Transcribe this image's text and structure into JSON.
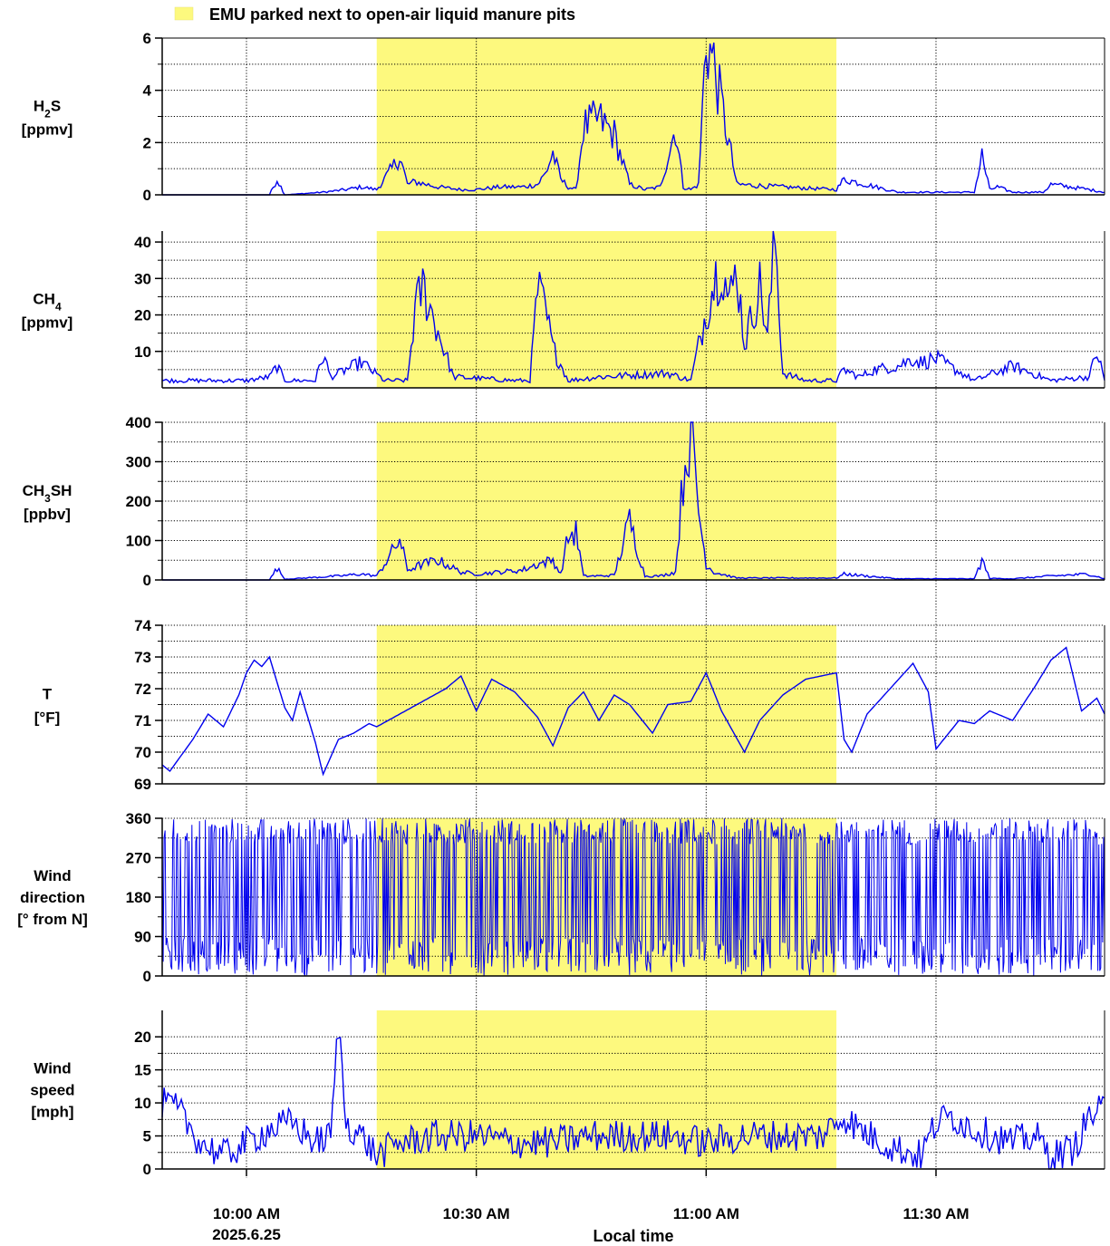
{
  "legend": {
    "label": "EMU parked next to open-air liquid manure pits",
    "color": "#fdf97e"
  },
  "chart_data": {
    "type": "line",
    "xlabel": "Local time",
    "date_label": "2025.6.25",
    "x_range": [
      "09:49",
      "11:52"
    ],
    "x_ticks": [
      {
        "time": "10:00",
        "label": "10:00 AM"
      },
      {
        "time": "10:30",
        "label": "10:30 AM"
      },
      {
        "time": "11:00",
        "label": "11:00 AM"
      },
      {
        "time": "11:30",
        "label": "11:30 AM"
      }
    ],
    "highlight": {
      "start": "10:17",
      "end": "11:17",
      "label": "EMU parked next to open-air liquid manure pits"
    },
    "series_color": "#0000ee",
    "grid": true,
    "panels": [
      {
        "id": "h2s",
        "label_parts": [
          {
            "t": "H"
          },
          {
            "t": "2",
            "sub": true
          },
          {
            "t": "S"
          }
        ],
        "unit": "[ppmv]",
        "ylim": [
          0,
          6
        ],
        "yticks": [
          0,
          2,
          4,
          6
        ],
        "ygrid": [
          1,
          3,
          5
        ],
        "x": [
          "09:49",
          "10:03",
          "10:04",
          "10:05",
          "10:10",
          "10:13",
          "10:15",
          "10:17",
          "10:19",
          "10:20",
          "10:21",
          "10:22",
          "10:25",
          "10:28",
          "10:30",
          "10:33",
          "10:36",
          "10:38",
          "10:39",
          "10:40",
          "10:41",
          "10:42",
          "10:43",
          "10:44",
          "10:46",
          "10:48",
          "10:50",
          "10:52",
          "10:54",
          "10:56",
          "10:57",
          "10:58",
          "10:59",
          "11:00",
          "11:01",
          "11:04",
          "11:10",
          "11:17",
          "11:18",
          "11:25",
          "11:30",
          "11:35",
          "11:36",
          "11:37",
          "11:38",
          "11:40",
          "11:44",
          "11:45",
          "11:50",
          "11:52"
        ],
        "y": [
          0,
          0,
          0.6,
          0,
          0.1,
          0.2,
          0.3,
          0.2,
          1.0,
          1.5,
          0.4,
          0.5,
          0.3,
          0.2,
          0.2,
          0.3,
          0.3,
          0.4,
          0.8,
          1.6,
          0.6,
          0.3,
          0.2,
          2.6,
          2.9,
          2.3,
          0.4,
          0.2,
          0.3,
          2.6,
          0.3,
          0.2,
          0.4,
          6.0,
          5.0,
          0.4,
          0.3,
          0.2,
          0.6,
          0.1,
          0.1,
          0.1,
          1.5,
          0.2,
          0.3,
          0.1,
          0.1,
          0.4,
          0.2,
          0.1
        ]
      },
      {
        "id": "ch4",
        "label_parts": [
          {
            "t": "CH"
          },
          {
            "t": "4",
            "sub": true
          }
        ],
        "unit": "[ppmv]",
        "ylim": [
          0,
          43
        ],
        "yticks": [
          10,
          20,
          30,
          40
        ],
        "ygrid": [
          5,
          15,
          25,
          35
        ],
        "x": [
          "09:49",
          "09:58",
          "10:00",
          "10:03",
          "10:04",
          "10:05",
          "10:09",
          "10:10",
          "10:11",
          "10:15",
          "10:18",
          "10:21",
          "10:22",
          "10:23",
          "10:27",
          "10:35",
          "10:37",
          "10:38",
          "10:39",
          "10:40",
          "10:42",
          "10:46",
          "10:55",
          "10:58",
          "11:00",
          "11:01",
          "11:02",
          "11:03",
          "11:04",
          "11:05",
          "11:06",
          "11:07",
          "11:08",
          "11:09",
          "11:10",
          "11:13",
          "11:17",
          "11:18",
          "11:20",
          "11:22",
          "11:25",
          "11:27",
          "11:28",
          "11:30",
          "11:35",
          "11:40",
          "11:45",
          "11:50",
          "11:51",
          "11:52"
        ],
        "y": [
          2,
          2,
          2,
          3,
          6,
          2,
          2,
          9,
          3,
          7,
          2,
          2,
          21,
          28,
          3,
          2,
          2,
          27,
          21,
          11,
          2,
          3,
          4,
          2,
          21,
          29,
          35,
          23,
          33,
          12,
          20,
          28,
          14,
          42,
          4,
          2,
          2,
          5,
          3,
          5,
          6,
          8,
          7,
          8,
          2,
          6,
          2,
          3,
          10,
          2
        ]
      },
      {
        "id": "ch3sh",
        "label_parts": [
          {
            "t": "CH"
          },
          {
            "t": "3",
            "sub": true
          },
          {
            "t": "SH"
          }
        ],
        "unit": "[ppbv]",
        "ylim": [
          0,
          400
        ],
        "yticks": [
          0,
          100,
          200,
          300,
          400
        ],
        "ygrid": [
          50,
          150,
          250,
          350
        ],
        "x": [
          "09:49",
          "10:03",
          "10:04",
          "10:05",
          "10:12",
          "10:15",
          "10:17",
          "10:19",
          "10:20",
          "10:21",
          "10:23",
          "10:25",
          "10:28",
          "10:30",
          "10:33",
          "10:36",
          "10:38",
          "10:40",
          "10:41",
          "10:42",
          "10:43",
          "10:44",
          "10:46",
          "10:48",
          "10:50",
          "10:52",
          "10:54",
          "10:56",
          "10:57",
          "10:58",
          "10:59",
          "11:00",
          "11:01",
          "11:04",
          "11:10",
          "11:17",
          "11:18",
          "11:25",
          "11:30",
          "11:35",
          "11:36",
          "11:37",
          "11:40",
          "11:45",
          "11:50",
          "11:52"
        ],
        "y": [
          0,
          0,
          30,
          2,
          10,
          15,
          10,
          70,
          105,
          25,
          40,
          50,
          20,
          15,
          20,
          25,
          40,
          50,
          15,
          110,
          120,
          10,
          10,
          12,
          150,
          10,
          10,
          20,
          260,
          400,
          180,
          40,
          20,
          5,
          5,
          5,
          15,
          3,
          3,
          3,
          50,
          4,
          3,
          10,
          15,
          3
        ]
      },
      {
        "id": "temp",
        "label_parts": [
          {
            "t": "T"
          }
        ],
        "unit": "[°F]",
        "ylim": [
          69,
          74
        ],
        "yticks": [
          69,
          70,
          71,
          72,
          73,
          74
        ],
        "ygrid": [
          69.5,
          70.5,
          71.5,
          72.5,
          73.5
        ],
        "x": [
          "09:49",
          "09:50",
          "09:53",
          "09:55",
          "09:57",
          "09:59",
          "10:00",
          "10:01",
          "10:02",
          "10:03",
          "10:04",
          "10:05",
          "10:06",
          "10:07",
          "10:08",
          "10:09",
          "10:10",
          "10:12",
          "10:14",
          "10:16",
          "10:17",
          "10:20",
          "10:23",
          "10:26",
          "10:28",
          "10:30",
          "10:32",
          "10:35",
          "10:38",
          "10:40",
          "10:42",
          "10:44",
          "10:46",
          "10:48",
          "10:50",
          "10:53",
          "10:55",
          "10:58",
          "11:00",
          "11:02",
          "11:05",
          "11:07",
          "11:10",
          "11:13",
          "11:17",
          "11:18",
          "11:19",
          "11:21",
          "11:24",
          "11:27",
          "11:29",
          "11:30",
          "11:31",
          "11:33",
          "11:35",
          "11:37",
          "11:40",
          "11:43",
          "11:45",
          "11:47",
          "11:49",
          "11:51",
          "11:52"
        ],
        "y": [
          69.6,
          69.4,
          70.4,
          71.2,
          70.8,
          71.8,
          72.5,
          72.9,
          72.7,
          73.0,
          72.2,
          71.4,
          71.0,
          71.9,
          71.1,
          70.3,
          69.3,
          70.4,
          70.6,
          70.9,
          70.8,
          71.2,
          71.6,
          72.0,
          72.4,
          71.3,
          72.3,
          71.9,
          71.1,
          70.2,
          71.4,
          71.9,
          71.0,
          71.8,
          71.5,
          70.6,
          71.5,
          71.6,
          72.5,
          71.3,
          70.0,
          71.0,
          71.8,
          72.3,
          72.5,
          70.4,
          70.0,
          71.2,
          72.0,
          72.8,
          71.9,
          70.1,
          70.4,
          71.0,
          70.9,
          71.3,
          71.0,
          72.1,
          72.9,
          73.3,
          71.3,
          71.7,
          71.2
        ]
      },
      {
        "id": "wdir",
        "label_parts": [
          {
            "t": "Wind"
          }
        ],
        "label_lines": [
          "Wind",
          "direction",
          "[° from N]"
        ],
        "ylim": [
          0,
          360
        ],
        "yticks": [
          0,
          90,
          180,
          270,
          360
        ],
        "ygrid": [
          45,
          135,
          225,
          315
        ],
        "style": "dense",
        "band_low": [
          0,
          40
        ],
        "band_high": [
          300,
          360
        ]
      },
      {
        "id": "wspd",
        "label_parts": [
          {
            "t": "Wind"
          }
        ],
        "label_lines": [
          "Wind",
          "speed",
          "[mph]"
        ],
        "ylim": [
          0,
          24
        ],
        "yticks": [
          0,
          5,
          10,
          15,
          20
        ],
        "ygrid": [
          2.5,
          7.5,
          12.5,
          17.5
        ],
        "style": "noisy",
        "x": [
          "09:49",
          "09:51",
          "09:54",
          "09:57",
          "10:00",
          "10:03",
          "10:06",
          "10:09",
          "10:11",
          "10:12",
          "10:13",
          "10:15",
          "10:17",
          "10:20",
          "10:25",
          "10:30",
          "10:35",
          "10:40",
          "10:45",
          "10:50",
          "10:55",
          "11:00",
          "11:05",
          "11:10",
          "11:15",
          "11:18",
          "11:20",
          "11:23",
          "11:25",
          "11:28",
          "11:30",
          "11:32",
          "11:35",
          "11:40",
          "11:43",
          "11:45",
          "11:48",
          "11:50",
          "11:52"
        ],
        "y": [
          10,
          9,
          4,
          2,
          4,
          6,
          7,
          4,
          5,
          22,
          7,
          5,
          2,
          4,
          5,
          5,
          4,
          4,
          5,
          5,
          5,
          4,
          5,
          5,
          5,
          8,
          6,
          4,
          3,
          2,
          7,
          8,
          6,
          4,
          5,
          2,
          3,
          8,
          9
        ]
      }
    ]
  }
}
